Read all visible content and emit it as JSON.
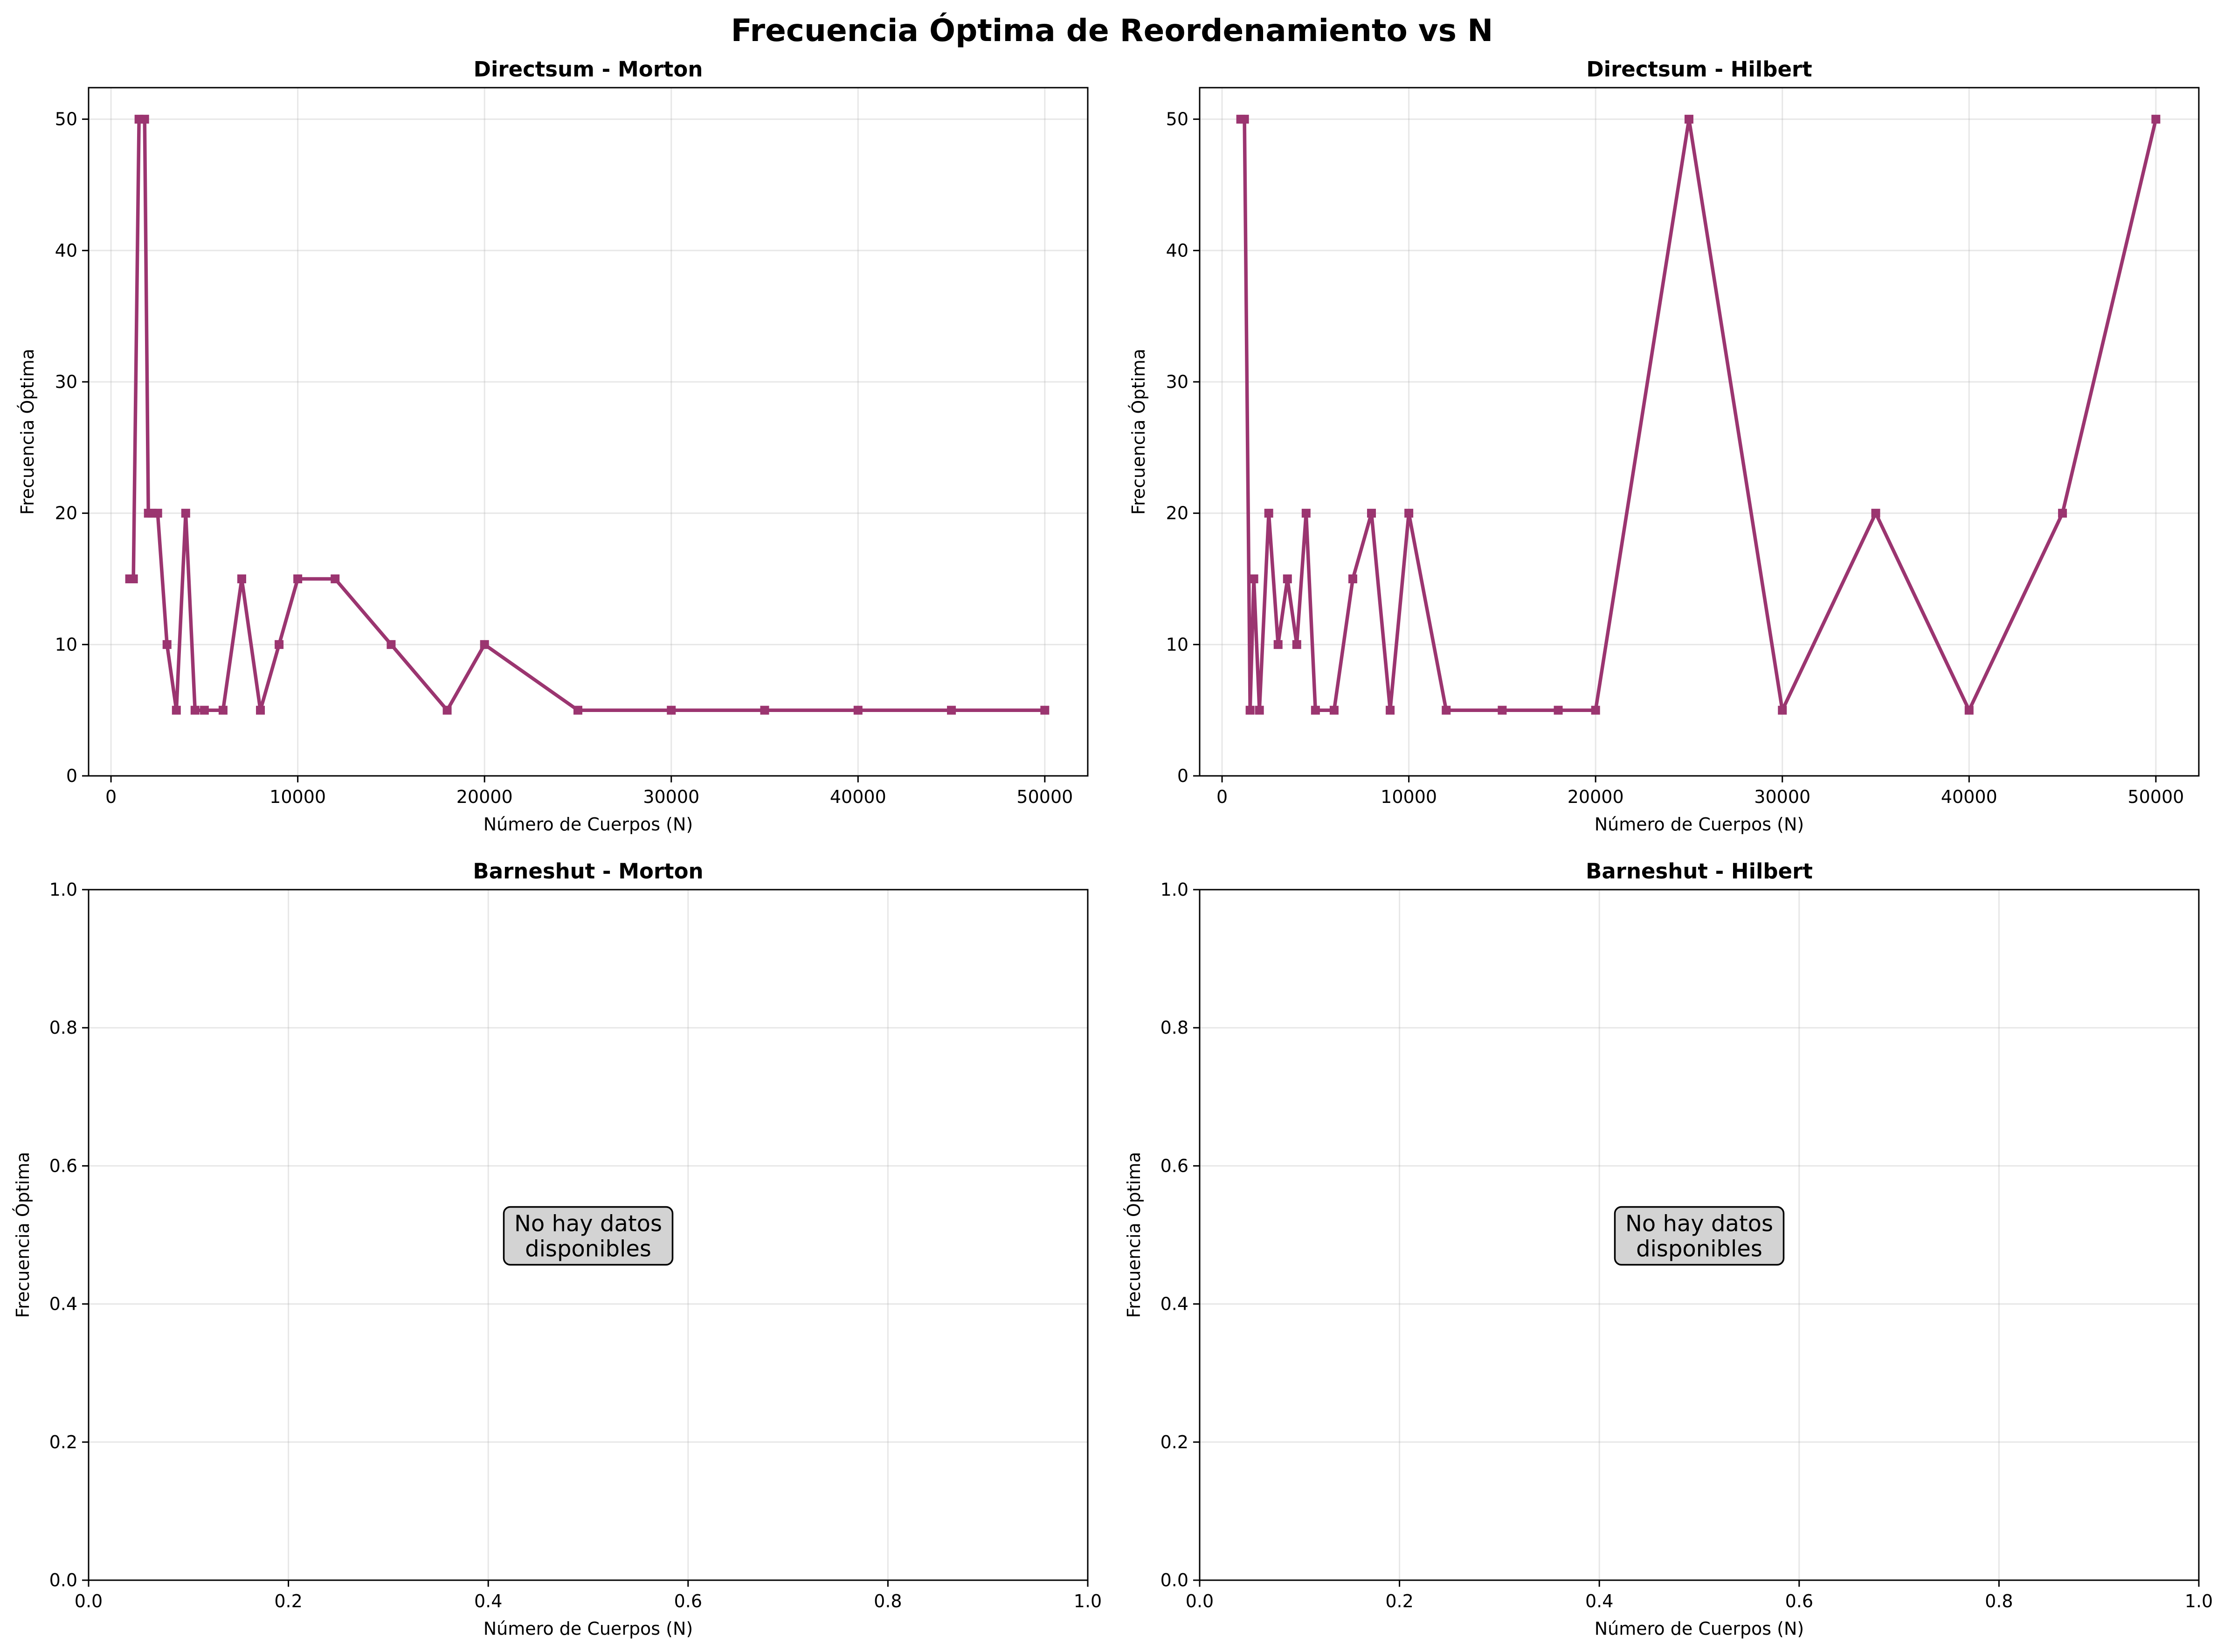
{
  "figure": {
    "title": "Frecuencia Óptima de Reordenamiento vs N",
    "series_color": "#9b3570",
    "nodata_color": "#d3d3d3"
  },
  "chart_data": [
    {
      "type": "line",
      "title": "Directsum - Morton",
      "xlabel": "Número de Cuerpos (N)",
      "ylabel": "Frecuencia Óptima",
      "xlim": [
        -1200,
        52300
      ],
      "ylim": [
        0,
        52.4
      ],
      "xticks": [
        0,
        10000,
        20000,
        30000,
        40000,
        50000
      ],
      "yticks": [
        0,
        10,
        20,
        30,
        40,
        50
      ],
      "grid": true,
      "x": [
        1000,
        1200,
        1500,
        1800,
        2000,
        2200,
        2500,
        3000,
        3500,
        4000,
        4500,
        5000,
        6000,
        7000,
        8000,
        9000,
        10000,
        12000,
        15000,
        18000,
        20000,
        25000,
        30000,
        35000,
        40000,
        45000,
        50000
      ],
      "y": [
        15,
        15,
        50,
        50,
        20,
        20,
        20,
        10,
        5,
        20,
        5,
        5,
        5,
        15,
        5,
        10,
        15,
        15,
        10,
        5,
        10,
        5,
        5,
        5,
        5,
        5,
        5
      ],
      "no_data_text": ""
    },
    {
      "type": "line",
      "title": "Directsum - Hilbert",
      "xlabel": "Número de Cuerpos (N)",
      "ylabel": "Frecuencia Óptima",
      "xlim": [
        -1200,
        52300
      ],
      "ylim": [
        0,
        52.4
      ],
      "xticks": [
        0,
        10000,
        20000,
        30000,
        40000,
        50000
      ],
      "yticks": [
        0,
        10,
        20,
        30,
        40,
        50
      ],
      "grid": true,
      "x": [
        1000,
        1200,
        1500,
        1700,
        2000,
        2500,
        3000,
        3500,
        4000,
        4500,
        5000,
        6000,
        7000,
        8000,
        9000,
        10000,
        12000,
        15000,
        18000,
        20000,
        25000,
        30000,
        35000,
        40000,
        45000,
        50000
      ],
      "y": [
        50,
        50,
        5,
        15,
        5,
        20,
        10,
        15,
        10,
        20,
        5,
        5,
        15,
        20,
        5,
        20,
        5,
        5,
        5,
        5,
        50,
        5,
        20,
        5,
        20,
        50
      ],
      "no_data_text": ""
    },
    {
      "type": "line",
      "title": "Barneshut - Morton",
      "xlabel": "Número de Cuerpos (N)",
      "ylabel": "Frecuencia Óptima",
      "xlim": [
        0,
        1
      ],
      "ylim": [
        0,
        1
      ],
      "xticks": [
        0.0,
        0.2,
        0.4,
        0.6,
        0.8,
        1.0
      ],
      "yticks": [
        0.0,
        0.2,
        0.4,
        0.6,
        0.8,
        1.0
      ],
      "grid": true,
      "x": [],
      "y": [],
      "no_data_text": [
        "No hay datos",
        "disponibles"
      ]
    },
    {
      "type": "line",
      "title": "Barneshut - Hilbert",
      "xlabel": "Número de Cuerpos (N)",
      "ylabel": "Frecuencia Óptima",
      "xlim": [
        0,
        1
      ],
      "ylim": [
        0,
        1
      ],
      "xticks": [
        0.0,
        0.2,
        0.4,
        0.6,
        0.8,
        1.0
      ],
      "yticks": [
        0.0,
        0.2,
        0.4,
        0.6,
        0.8,
        1.0
      ],
      "grid": true,
      "x": [],
      "y": [],
      "no_data_text": [
        "No hay datos",
        "disponibles"
      ]
    }
  ]
}
